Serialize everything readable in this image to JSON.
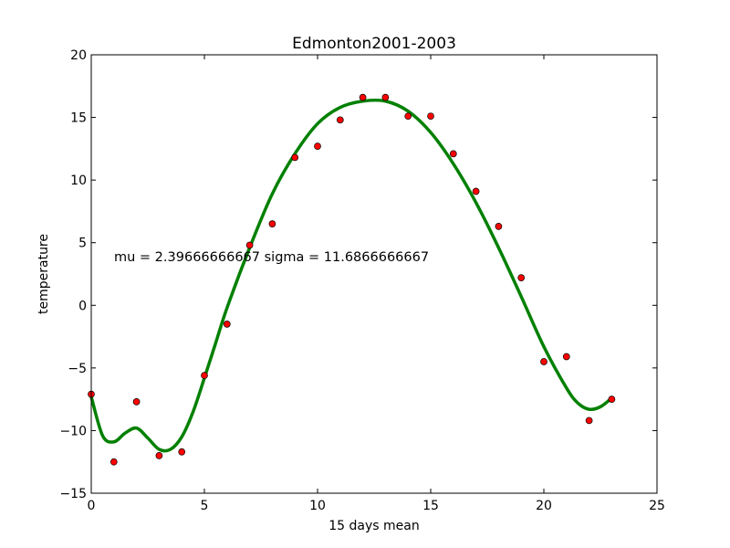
{
  "chart_data": {
    "type": "scatter",
    "title": "Edmonton2001-2003",
    "xlabel": "15 days mean",
    "ylabel": "temperature",
    "annotation": "mu = 2.39666666667 sigma = 11.6866666667",
    "xlim": [
      0,
      25
    ],
    "ylim": [
      -15,
      20
    ],
    "xticks": [
      0,
      5,
      10,
      15,
      20,
      25
    ],
    "yticks": [
      -15,
      -10,
      -5,
      0,
      5,
      10,
      15,
      20
    ],
    "grid": false,
    "series": [
      {
        "kind": "points",
        "color": "#ff0000",
        "x": [
          0,
          1,
          2,
          3,
          4,
          5,
          6,
          7,
          8,
          9,
          10,
          11,
          12,
          13,
          14,
          15,
          16,
          17,
          18,
          19,
          20,
          21,
          22,
          23
        ],
        "y": [
          -7.1,
          -12.5,
          -7.7,
          -12.0,
          -11.7,
          -5.6,
          -1.5,
          4.8,
          6.5,
          11.8,
          12.7,
          14.8,
          16.6,
          16.6,
          15.1,
          15.1,
          12.1,
          9.1,
          6.3,
          2.2,
          -4.5,
          -4.1,
          -9.2,
          -7.5
        ]
      },
      {
        "kind": "curve",
        "color": "#008000",
        "x": [
          0,
          0.5,
          1,
          1.5,
          2,
          2.5,
          3,
          3.5,
          4,
          4.5,
          5,
          5.5,
          6,
          7,
          8,
          9,
          10,
          11,
          12,
          13,
          14,
          15,
          16,
          17,
          18,
          19,
          20,
          21,
          21.5,
          22,
          22.5,
          23
        ],
        "y": [
          -7.3,
          -10.4,
          -10.9,
          -10.2,
          -9.8,
          -10.6,
          -11.5,
          -11.5,
          -10.5,
          -8.5,
          -5.8,
          -3.0,
          -0.2,
          4.6,
          8.9,
          12.1,
          14.5,
          15.8,
          16.3,
          16.3,
          15.5,
          13.8,
          11.3,
          8.2,
          4.6,
          0.7,
          -3.3,
          -6.6,
          -7.8,
          -8.3,
          -8.1,
          -7.4
        ]
      }
    ]
  }
}
